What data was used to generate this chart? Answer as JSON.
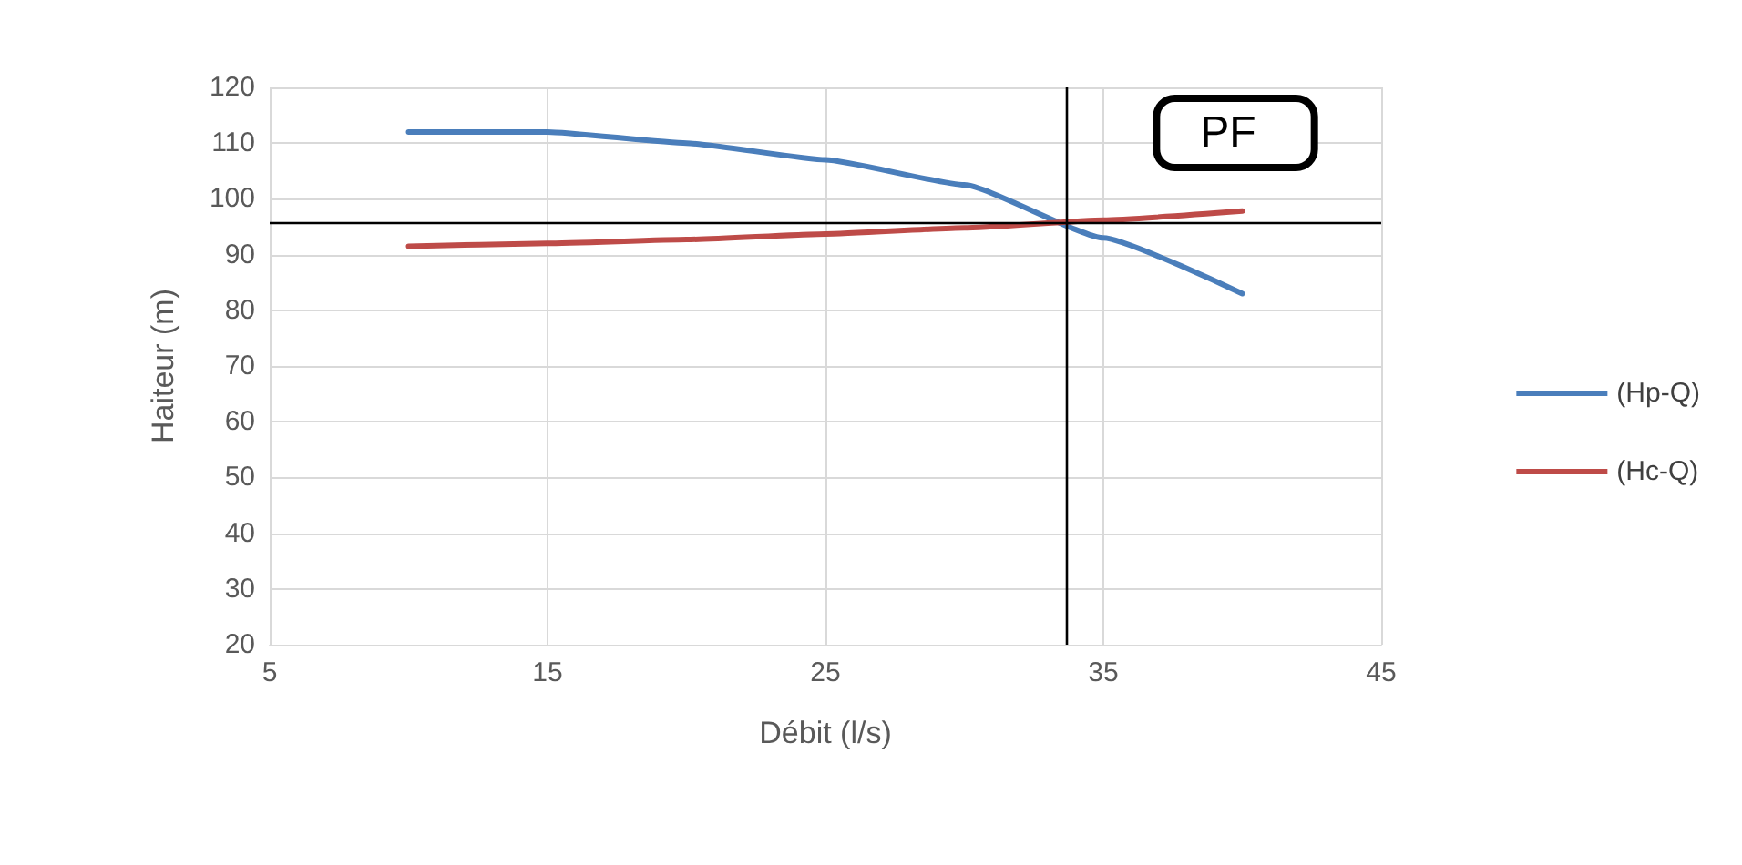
{
  "chart_data": {
    "type": "line",
    "xlabel": "Débit (l/s)",
    "ylabel": "Haiteur (m)",
    "xlim": [
      5,
      45
    ],
    "xticks": [
      5,
      15,
      25,
      35,
      45
    ],
    "ylim": [
      20,
      120
    ],
    "yticks": [
      20,
      30,
      40,
      50,
      60,
      70,
      80,
      90,
      100,
      110,
      120
    ],
    "series": [
      {
        "name": "(Hp-Q)",
        "color": "#4a7ebb",
        "x": [
          10,
          15,
          20,
          25,
          30,
          35,
          40
        ],
        "values": [
          112,
          112,
          110,
          107,
          102.5,
          93,
          83
        ]
      },
      {
        "name": "(Hc-Q)",
        "color": "#be4b48",
        "x": [
          10,
          15,
          20,
          25,
          30,
          35,
          40
        ],
        "values": [
          91.5,
          92,
          92.7,
          93.7,
          94.8,
          96.2,
          97.8
        ]
      }
    ],
    "ref_lines": [
      {
        "axis": "y",
        "value": 95.7,
        "color": "#000000"
      },
      {
        "axis": "x",
        "value": 33.7,
        "color": "#000000"
      }
    ],
    "annotations": [
      "PF"
    ],
    "grid": true,
    "legend": "right",
    "marker": "none",
    "line_style": "solid"
  }
}
